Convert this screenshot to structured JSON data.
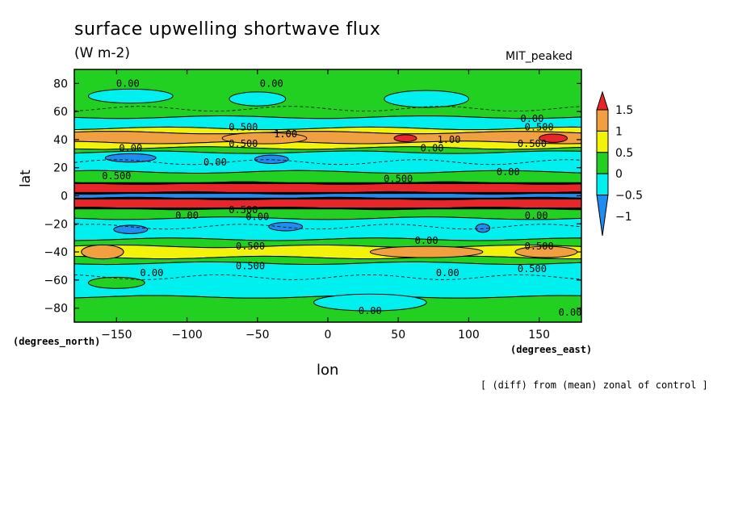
{
  "chart_data": {
    "type": "heatmap",
    "title": "surface upwelling shortwave flux",
    "units": "(W m-2)",
    "model": "MIT_peaked",
    "xlabel": "lon",
    "ylabel": "lat",
    "x_units": "(degrees_east)",
    "y_units": "(degrees_north)",
    "note": "[ (diff) from (mean) zonal of control ]",
    "xlim": [
      -180,
      180
    ],
    "ylim": [
      -90,
      90
    ],
    "x_ticks": [
      -150,
      -100,
      -50,
      0,
      50,
      100,
      150
    ],
    "y_ticks": [
      80,
      60,
      40,
      20,
      0,
      -20,
      -40,
      -60,
      -80
    ],
    "colorbar": {
      "levels": [
        "1.5",
        "1",
        "0.5",
        "0",
        "-0.5",
        "-1"
      ],
      "colors": [
        "#e8262a",
        "#f0a040",
        "#f2f20a",
        "#22d022",
        "#00f0f0",
        "#1e8cf0"
      ],
      "extend": "both"
    },
    "bands": [
      {
        "lat_top": 90,
        "lat_bottom": 56,
        "value": "0",
        "color": "#22d022"
      },
      {
        "lat_top": 56,
        "lat_bottom": 48,
        "value": "-0.5",
        "color": "#00f0f0"
      },
      {
        "lat_top": 48,
        "lat_bottom": 45,
        "value": "0.5",
        "color": "#f2f20a"
      },
      {
        "lat_top": 45,
        "lat_bottom": 38,
        "value": "1",
        "color": "#f0a040"
      },
      {
        "lat_top": 38,
        "lat_bottom": 34,
        "value": "0.5",
        "color": "#f2f20a"
      },
      {
        "lat_top": 34,
        "lat_bottom": 31,
        "value": "0",
        "color": "#22d022"
      },
      {
        "lat_top": 31,
        "lat_bottom": 17,
        "value": "-0.5",
        "color": "#00f0f0"
      },
      {
        "lat_top": 17,
        "lat_bottom": 9,
        "value": "0",
        "color": "#22d022"
      },
      {
        "lat_top": 9,
        "lat_bottom": 2,
        "value": "1.5",
        "color": "#e8262a"
      },
      {
        "lat_top": 2,
        "lat_bottom": -2,
        "value": "-1",
        "color": "#1e8cf0"
      },
      {
        "lat_top": -2,
        "lat_bottom": -9,
        "value": "1.5",
        "color": "#e8262a"
      },
      {
        "lat_top": -9,
        "lat_bottom": -16,
        "value": "0",
        "color": "#22d022"
      },
      {
        "lat_top": -16,
        "lat_bottom": -31,
        "value": "-0.5",
        "color": "#00f0f0"
      },
      {
        "lat_top": -31,
        "lat_bottom": -36,
        "value": "0",
        "color": "#22d022"
      },
      {
        "lat_top": -36,
        "lat_bottom": -44,
        "value": "0.5",
        "color": "#f2f20a"
      },
      {
        "lat_top": -44,
        "lat_bottom": -48,
        "value": "0",
        "color": "#22d022"
      },
      {
        "lat_top": -48,
        "lat_bottom": -72,
        "value": "-0.5",
        "color": "#00f0f0"
      },
      {
        "lat_top": -72,
        "lat_bottom": -90,
        "value": "0",
        "color": "#22d022"
      }
    ],
    "patches": [
      {
        "lon": -140,
        "lat": 71,
        "rx": 30,
        "ry": 5,
        "value": "-0.5",
        "color": "#00f0f0"
      },
      {
        "lon": -50,
        "lat": 69,
        "rx": 20,
        "ry": 5,
        "value": "-0.5",
        "color": "#00f0f0"
      },
      {
        "lon": 70,
        "lat": 69,
        "rx": 30,
        "ry": 6,
        "value": "-0.5",
        "color": "#00f0f0"
      },
      {
        "lon": -45,
        "lat": 41,
        "rx": 30,
        "ry": 4,
        "value": "1",
        "color": "#f0a040"
      },
      {
        "lon": 55,
        "lat": 41,
        "rx": 8,
        "ry": 2.5,
        "value": "1.5",
        "color": "#e8262a"
      },
      {
        "lon": 160,
        "lat": 41,
        "rx": 10,
        "ry": 3,
        "value": "1.5",
        "color": "#e8262a"
      },
      {
        "lon": -140,
        "lat": 27,
        "rx": 18,
        "ry": 3,
        "value": "-1",
        "color": "#1e8cf0"
      },
      {
        "lon": -40,
        "lat": 26,
        "rx": 12,
        "ry": 3,
        "value": "-1",
        "color": "#1e8cf0"
      },
      {
        "lon": -140,
        "lat": -24,
        "rx": 12,
        "ry": 3,
        "value": "-1",
        "color": "#1e8cf0"
      },
      {
        "lon": -30,
        "lat": -22,
        "rx": 12,
        "ry": 3,
        "value": "-1",
        "color": "#1e8cf0"
      },
      {
        "lon": 110,
        "lat": -23,
        "rx": 5,
        "ry": 3,
        "value": "-1",
        "color": "#1e8cf0"
      },
      {
        "lon": -160,
        "lat": -40,
        "rx": 15,
        "ry": 5,
        "value": "1",
        "color": "#f0a040"
      },
      {
        "lon": 70,
        "lat": -40,
        "rx": 40,
        "ry": 4,
        "value": "1",
        "color": "#f0a040"
      },
      {
        "lon": 155,
        "lat": -40,
        "rx": 22,
        "ry": 4,
        "value": "1",
        "color": "#f0a040"
      },
      {
        "lon": -150,
        "lat": -62,
        "rx": 20,
        "ry": 4,
        "value": "0",
        "color": "#22d022"
      },
      {
        "lon": 30,
        "lat": -76,
        "rx": 40,
        "ry": 6,
        "value": "-0.5",
        "color": "#00f0f0"
      }
    ],
    "contour_labels": [
      {
        "text": "0.00",
        "lon": -142,
        "lat": 80
      },
      {
        "text": "0.00",
        "lon": -40,
        "lat": 80
      },
      {
        "text": "0.00",
        "lon": 145,
        "lat": 55
      },
      {
        "text": "0.500",
        "lon": -60,
        "lat": 49
      },
      {
        "text": "0.500",
        "lon": 150,
        "lat": 49
      },
      {
        "text": "1.00",
        "lon": -30,
        "lat": 44
      },
      {
        "text": "1.00",
        "lon": 86,
        "lat": 40
      },
      {
        "text": "0.500",
        "lon": -60,
        "lat": 37
      },
      {
        "text": "0.500",
        "lon": 145,
        "lat": 37
      },
      {
        "text": "0.00",
        "lon": -140,
        "lat": 34
      },
      {
        "text": "0.00",
        "lon": 74,
        "lat": 34
      },
      {
        "text": "0.00",
        "lon": -80,
        "lat": 24
      },
      {
        "text": "0.00",
        "lon": 128,
        "lat": 17
      },
      {
        "text": "0.500",
        "lon": -150,
        "lat": 14
      },
      {
        "text": "0.500",
        "lon": 50,
        "lat": 12
      },
      {
        "text": "0.500",
        "lon": -60,
        "lat": -10
      },
      {
        "text": "0.00",
        "lon": -50,
        "lat": -15
      },
      {
        "text": "0.00",
        "lon": 148,
        "lat": -14
      },
      {
        "text": "0.00",
        "lon": -100,
        "lat": -14
      },
      {
        "text": "0.00",
        "lon": 70,
        "lat": -32
      },
      {
        "text": "0.500",
        "lon": -55,
        "lat": -36
      },
      {
        "text": "0.500",
        "lon": 150,
        "lat": -36
      },
      {
        "text": "0.500",
        "lon": -55,
        "lat": -50
      },
      {
        "text": "0.500",
        "lon": 145,
        "lat": -52
      },
      {
        "text": "0.00",
        "lon": -125,
        "lat": -55
      },
      {
        "text": "0.00",
        "lon": 85,
        "lat": -55
      },
      {
        "text": "0.00",
        "lon": 30,
        "lat": -82
      },
      {
        "text": "0.00",
        "lon": 172,
        "lat": -83
      }
    ]
  }
}
